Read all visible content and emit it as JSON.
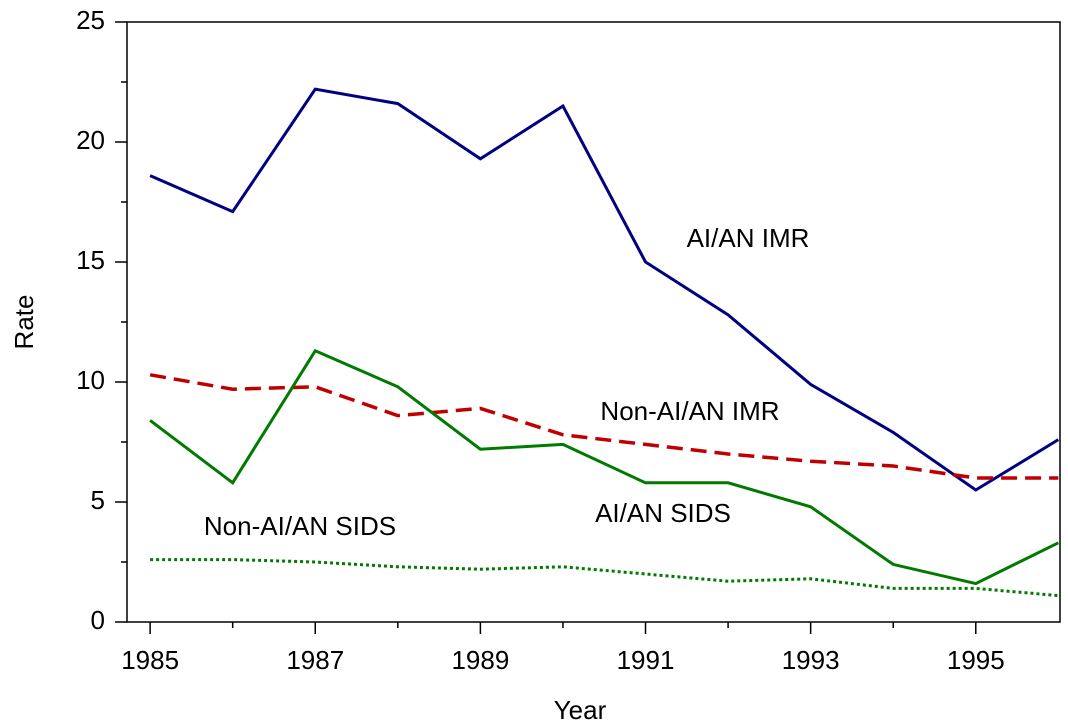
{
  "chart_data": {
    "type": "line",
    "x_label": "Year",
    "y_label": "Rate",
    "x": [
      1985,
      1986,
      1987,
      1988,
      1989,
      1990,
      1991,
      1992,
      1993,
      1994,
      1995,
      1996
    ],
    "series": [
      {
        "name": "AI/AN IMR",
        "color": "#000080",
        "dash": "solid",
        "values": [
          18.6,
          17.1,
          22.2,
          21.6,
          19.3,
          21.5,
          15.0,
          12.8,
          9.9,
          7.9,
          5.5,
          7.6
        ]
      },
      {
        "name": "Non-AI/AN IMR",
        "color": "#c00000",
        "dash": "dashed",
        "values": [
          10.3,
          9.7,
          9.8,
          8.6,
          8.9,
          7.8,
          7.4,
          7.0,
          6.7,
          6.5,
          6.0,
          6.0
        ]
      },
      {
        "name": "AI/AN SIDS",
        "color": "#007a00",
        "dash": "solid",
        "values": [
          8.4,
          5.8,
          11.3,
          9.8,
          7.2,
          7.4,
          5.8,
          5.8,
          4.8,
          2.4,
          1.6,
          3.3
        ]
      },
      {
        "name": "Non-AI/AN SIDS",
        "color": "#007a00",
        "dash": "dotted",
        "values": [
          2.6,
          2.6,
          2.5,
          2.3,
          2.2,
          2.3,
          2.0,
          1.7,
          1.8,
          1.4,
          1.4,
          1.1
        ]
      }
    ],
    "xlim": [
      1984.72,
      1996.02
    ],
    "xticks": [
      1985,
      1987,
      1989,
      1991,
      1993,
      1995
    ],
    "ylim": [
      0,
      25
    ],
    "yticks": [
      0,
      5,
      10,
      15,
      20,
      25
    ],
    "grid": false
  }
}
